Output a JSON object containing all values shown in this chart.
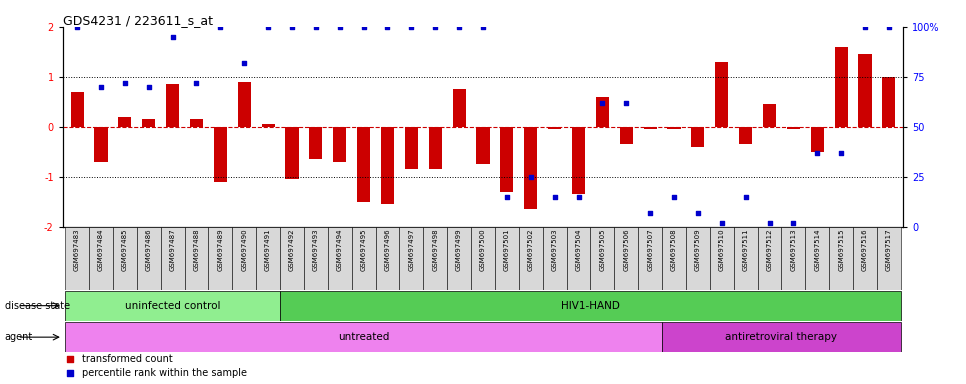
{
  "title": "GDS4231 / 223611_s_at",
  "samples": [
    "GSM697483",
    "GSM697484",
    "GSM697485",
    "GSM697486",
    "GSM697487",
    "GSM697488",
    "GSM697489",
    "GSM697490",
    "GSM697491",
    "GSM697492",
    "GSM697493",
    "GSM697494",
    "GSM697495",
    "GSM697496",
    "GSM697497",
    "GSM697498",
    "GSM697499",
    "GSM697500",
    "GSM697501",
    "GSM697502",
    "GSM697503",
    "GSM697504",
    "GSM697505",
    "GSM697506",
    "GSM697507",
    "GSM697508",
    "GSM697509",
    "GSM697510",
    "GSM697511",
    "GSM697512",
    "GSM697513",
    "GSM697514",
    "GSM697515",
    "GSM697516",
    "GSM697517"
  ],
  "bar_values": [
    0.7,
    -0.7,
    0.2,
    0.15,
    0.85,
    0.15,
    -1.1,
    0.9,
    0.05,
    -1.05,
    -0.65,
    -0.7,
    -1.5,
    -1.55,
    -0.85,
    -0.85,
    0.75,
    -0.75,
    -1.3,
    -1.65,
    -0.05,
    -1.35,
    0.6,
    -0.35,
    -0.05,
    -0.05,
    -0.4,
    1.3,
    -0.35,
    0.45,
    -0.05,
    -0.5,
    1.6,
    1.45,
    1.0
  ],
  "percentile_values_pct": [
    100,
    70,
    72,
    70,
    95,
    72,
    100,
    82,
    100,
    100,
    100,
    100,
    100,
    100,
    100,
    100,
    100,
    100,
    15,
    25,
    15,
    15,
    62,
    62,
    7,
    15,
    7,
    2,
    15,
    2,
    2,
    37,
    37,
    100,
    100
  ],
  "disease_state_groups": [
    {
      "label": "uninfected control",
      "start": 0,
      "end": 8,
      "color": "#90EE90"
    },
    {
      "label": "HIV1-HAND",
      "start": 9,
      "end": 34,
      "color": "#55CC55"
    }
  ],
  "agent_groups": [
    {
      "label": "untreated",
      "start": 0,
      "end": 24,
      "color": "#EE82EE"
    },
    {
      "label": "antiretroviral therapy",
      "start": 25,
      "end": 34,
      "color": "#CC44CC"
    }
  ],
  "ylim": [
    -2.0,
    2.0
  ],
  "bar_color": "#CC0000",
  "dot_color": "#0000CC",
  "hline_color": "#CC0000",
  "bg_color": "#D8D8D8",
  "disease_state_label": "disease state",
  "agent_label": "agent",
  "legend_bar_label": "transformed count",
  "legend_dot_label": "percentile rank within the sample"
}
